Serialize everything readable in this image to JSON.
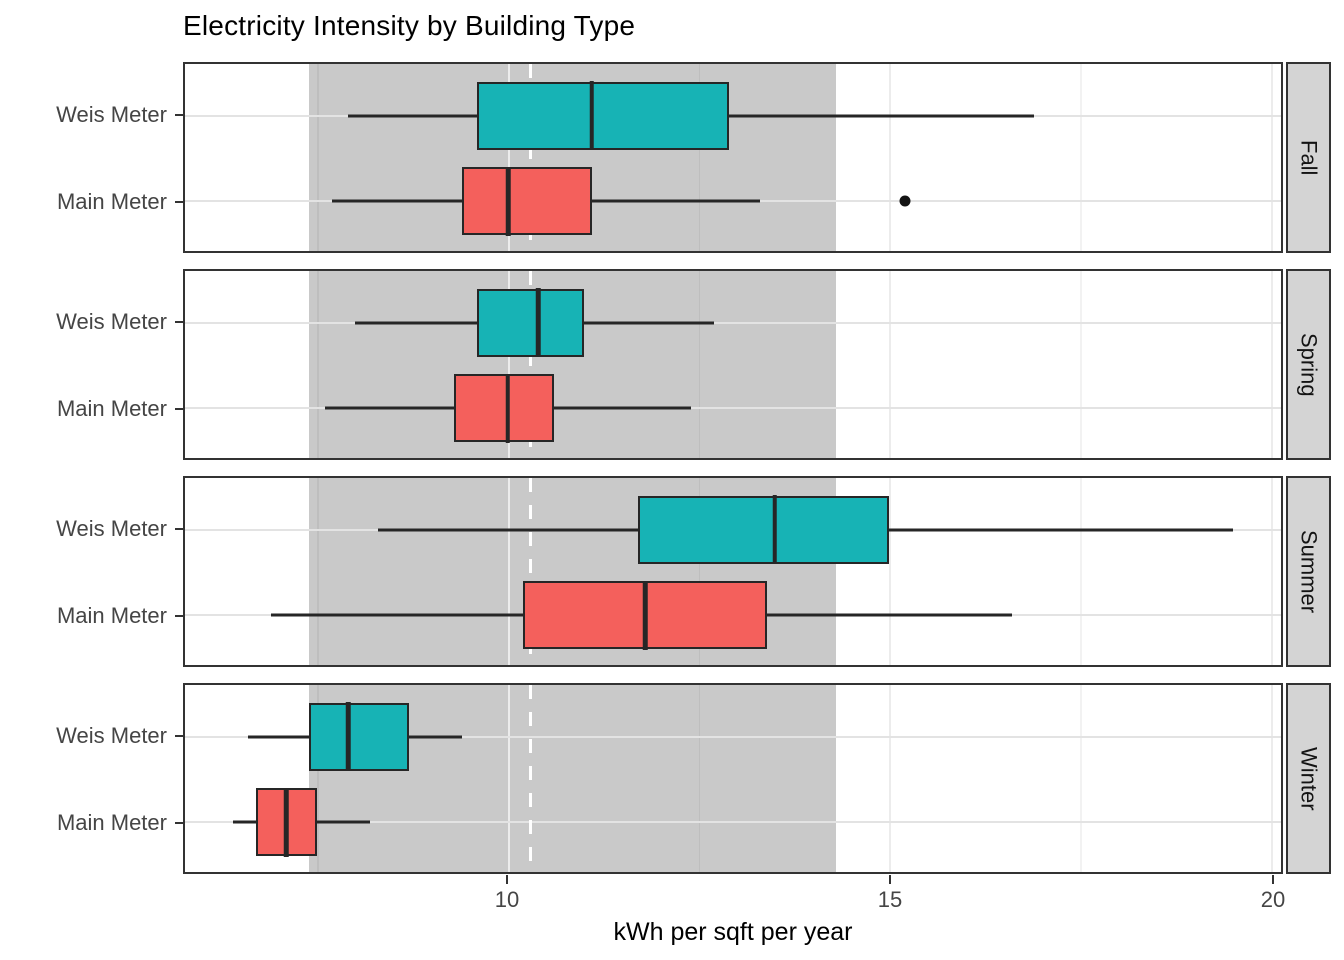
{
  "chart_data": {
    "type": "boxplot",
    "title": "Electricity Intensity by Building Type",
    "xlabel": "kWh per sqft per year",
    "orientation": "horizontal",
    "x_domain": [
      5.77,
      20.13
    ],
    "x_ticks": [
      10,
      15,
      20
    ],
    "x_tick_labels": [
      "10",
      "15",
      "20"
    ],
    "x_minor_ticks": [
      7.5,
      12.5,
      17.5
    ],
    "groups": [
      "Weis Meter",
      "Main Meter"
    ],
    "row_centers_pct": [
      27.7,
      73.3
    ],
    "band": {
      "from": 7.4,
      "to": 14.3,
      "color": "#c9c9c9"
    },
    "reference_line": {
      "x": 10.3,
      "style": "dashed",
      "color": "#ffffff"
    },
    "facets": [
      {
        "name": "Fall",
        "series": [
          {
            "group": "Weis Meter",
            "whisker_low": 7.9,
            "q1": 9.6,
            "median": 11.1,
            "q3": 12.9,
            "whisker_high": 16.9,
            "outliers": []
          },
          {
            "group": "Main Meter",
            "whisker_low": 7.7,
            "q1": 9.4,
            "median": 10.0,
            "q3": 11.1,
            "whisker_high": 13.3,
            "outliers": [
              15.2
            ]
          }
        ]
      },
      {
        "name": "Spring",
        "series": [
          {
            "group": "Weis Meter",
            "whisker_low": 8.0,
            "q1": 9.6,
            "median": 10.4,
            "q3": 11.0,
            "whisker_high": 12.7,
            "outliers": []
          },
          {
            "group": "Main Meter",
            "whisker_low": 7.6,
            "q1": 9.3,
            "median": 10.0,
            "q3": 10.6,
            "whisker_high": 12.4,
            "outliers": []
          }
        ]
      },
      {
        "name": "Summer",
        "series": [
          {
            "group": "Weis Meter",
            "whisker_low": 8.3,
            "q1": 11.7,
            "median": 13.5,
            "q3": 15.0,
            "whisker_high": 19.5,
            "outliers": []
          },
          {
            "group": "Main Meter",
            "whisker_low": 6.9,
            "q1": 10.2,
            "median": 11.8,
            "q3": 13.4,
            "whisker_high": 16.6,
            "outliers": []
          }
        ]
      },
      {
        "name": "Winter",
        "series": [
          {
            "group": "Weis Meter",
            "whisker_low": 6.6,
            "q1": 7.4,
            "median": 7.9,
            "q3": 8.7,
            "whisker_high": 9.4,
            "outliers": []
          },
          {
            "group": "Main Meter",
            "whisker_low": 6.4,
            "q1": 6.7,
            "median": 7.1,
            "q3": 7.5,
            "whisker_high": 8.2,
            "outliers": []
          }
        ]
      }
    ],
    "colors": {
      "Weis Meter": "#17b3b5",
      "Main Meter": "#f4605c",
      "box_stroke": "#262626",
      "strip_background": "#d4d4d4",
      "panel_border": "#333333",
      "axis_text": "#454545"
    },
    "legend": "none",
    "grid": "on"
  }
}
